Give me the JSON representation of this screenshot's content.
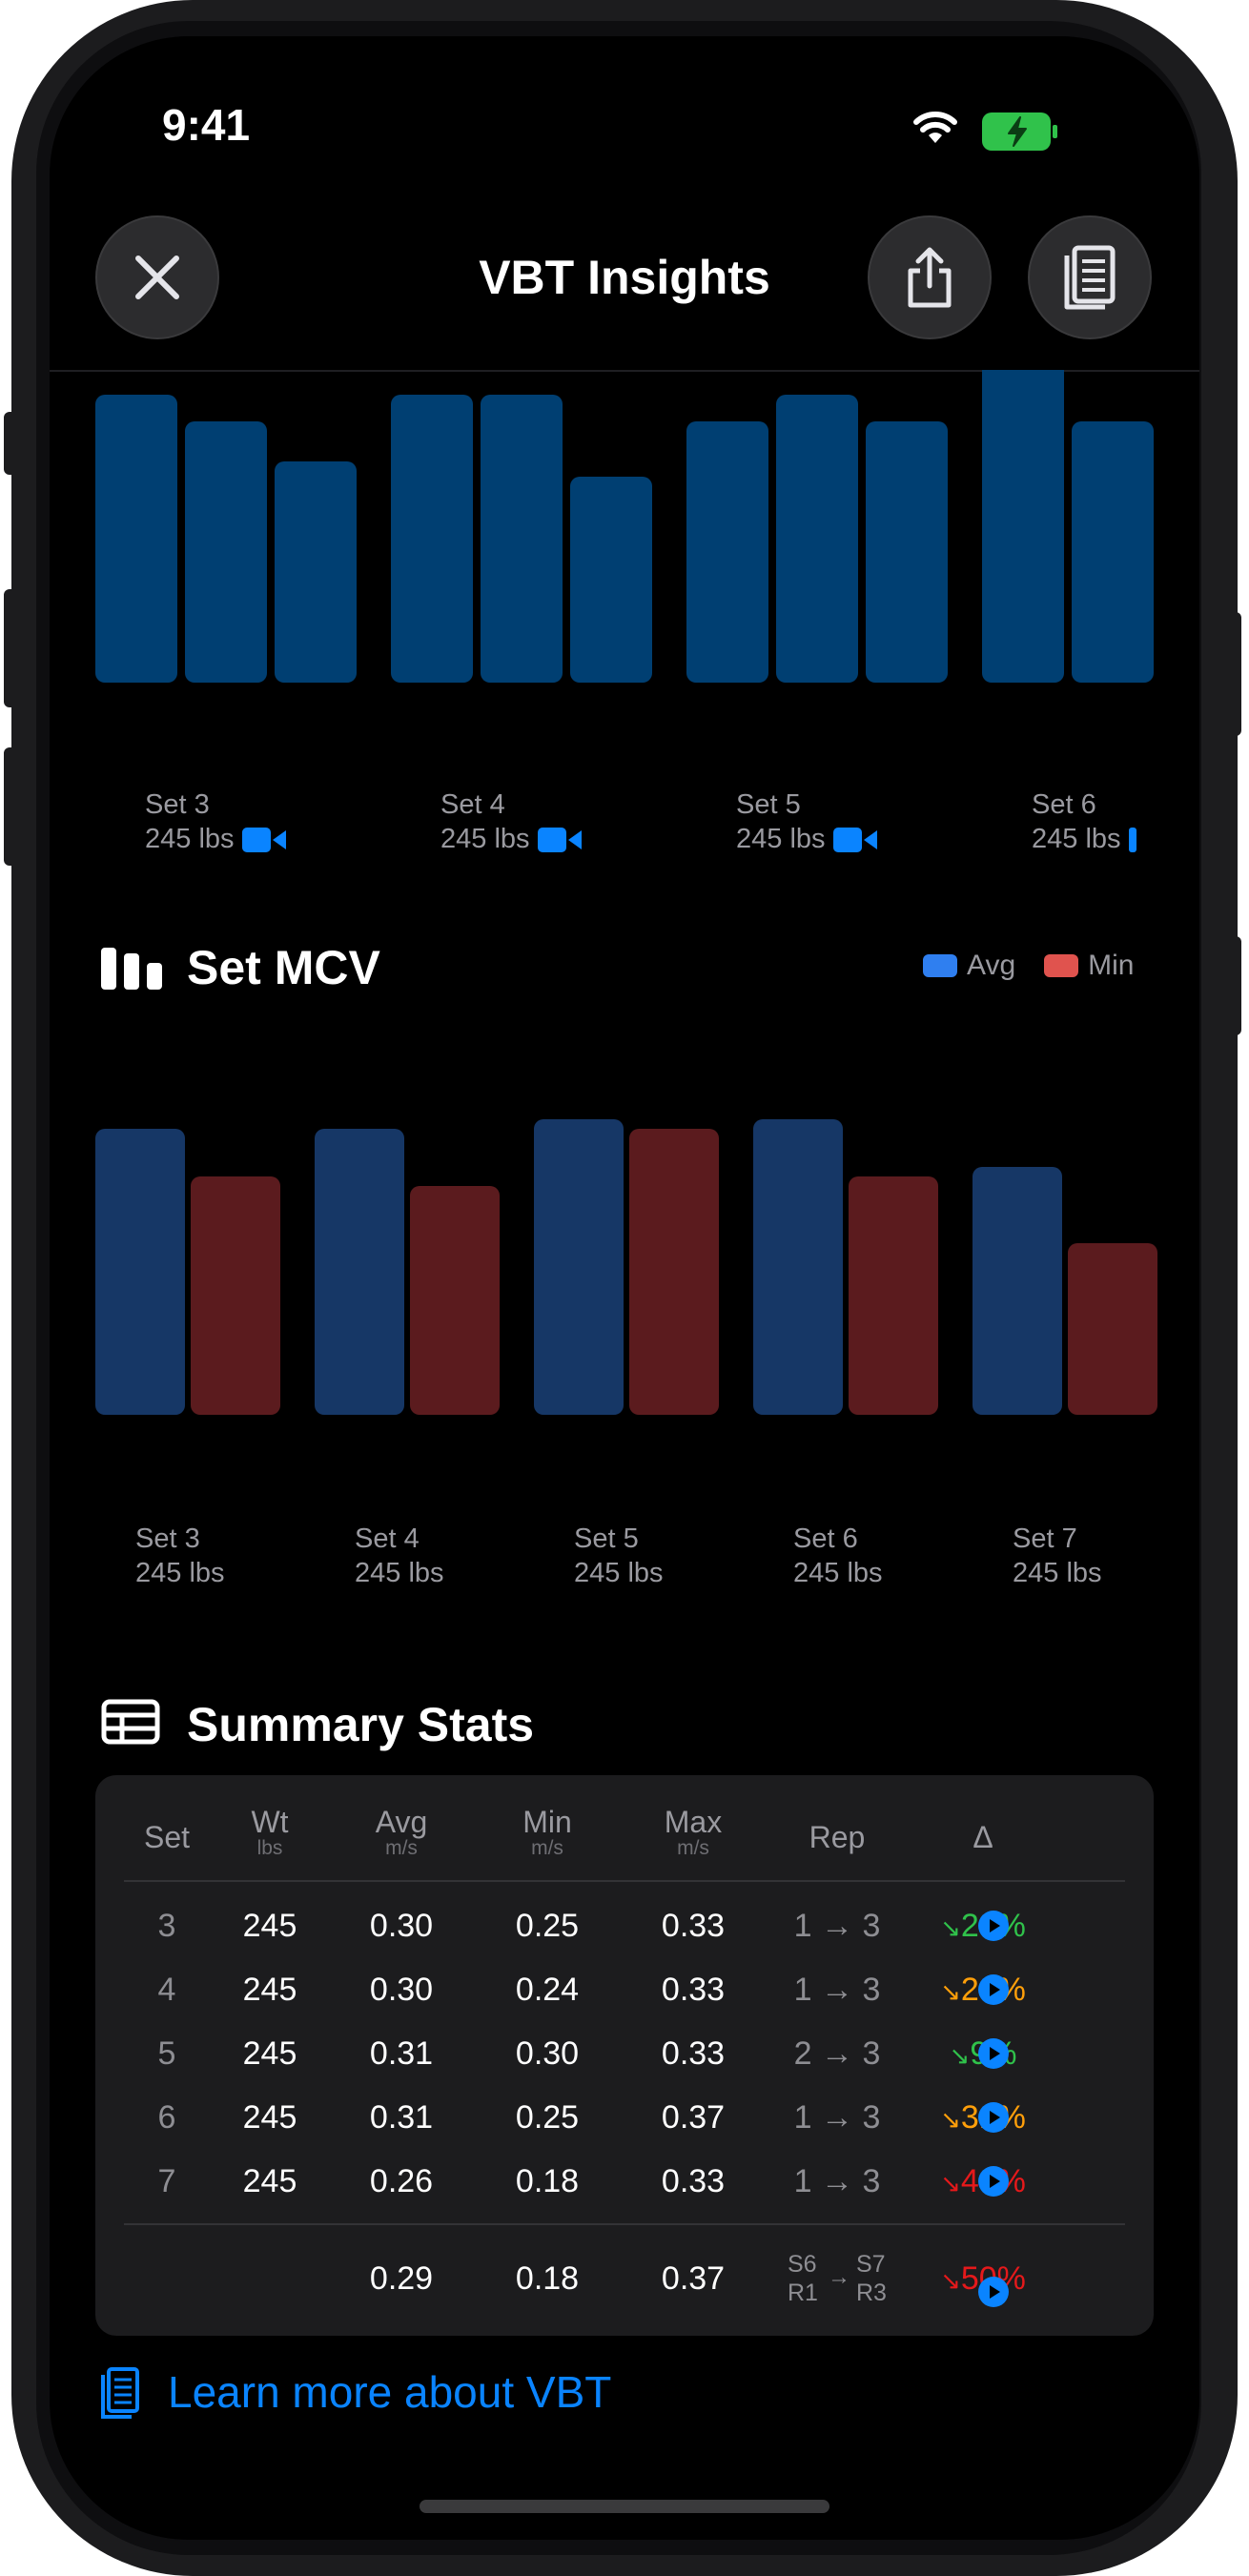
{
  "status_bar": {
    "time": "9:41"
  },
  "nav": {
    "title": "VBT Insights",
    "close_icon": "close-icon",
    "share_icon": "share-icon",
    "guide_icon": "document-icon"
  },
  "velocity_chart": {
    "set_labels": [
      {
        "set": "Set 3",
        "weight": "245 lbs"
      },
      {
        "set": "Set 4",
        "weight": "245 lbs"
      },
      {
        "set": "Set 5",
        "weight": "245 lbs"
      },
      {
        "set": "Set 6",
        "weight": "245 lbs"
      }
    ]
  },
  "mcv": {
    "title": "Set MCV",
    "legend": {
      "avg": "Avg",
      "min": "Min"
    },
    "colors": {
      "avg": "#163766",
      "min": "#5b1b1e",
      "avg_legend": "#2f7ff0",
      "min_legend": "#e0534e"
    }
  },
  "chart_data": {
    "type": "bar",
    "title": "Set MCV",
    "categories": [
      "Set 3\n245 lbs",
      "Set 4\n245 lbs",
      "Set 5\n245 lbs",
      "Set 6\n245 lbs",
      "Set 7\n245 lbs"
    ],
    "category_labels": [
      {
        "set": "Set 3",
        "weight": "245 lbs"
      },
      {
        "set": "Set 4",
        "weight": "245 lbs"
      },
      {
        "set": "Set 5",
        "weight": "245 lbs"
      },
      {
        "set": "Set 6",
        "weight": "245 lbs"
      },
      {
        "set": "Set 7",
        "weight": "245 lbs"
      }
    ],
    "series": [
      {
        "name": "Avg",
        "values": [
          0.3,
          0.3,
          0.31,
          0.31,
          0.26
        ]
      },
      {
        "name": "Min",
        "values": [
          0.25,
          0.24,
          0.3,
          0.25,
          0.18
        ]
      }
    ],
    "ylim": [
      0,
      0.33
    ],
    "legend_position": "top-right",
    "grid": false
  },
  "summary": {
    "title": "Summary Stats",
    "headers": [
      {
        "label": "Set",
        "unit": ""
      },
      {
        "label": "Wt",
        "unit": "lbs"
      },
      {
        "label": "Avg",
        "unit": "m/s"
      },
      {
        "label": "Min",
        "unit": "m/s"
      },
      {
        "label": "Max",
        "unit": "m/s"
      },
      {
        "label": "Rep",
        "unit": ""
      },
      {
        "label": "Δ",
        "unit": ""
      }
    ],
    "rows": [
      {
        "set": "3",
        "wt": "245",
        "avg": "0.30",
        "min": "0.25",
        "max": "0.33",
        "rep": "1 → 3",
        "delta": "23%",
        "trend": "green"
      },
      {
        "set": "4",
        "wt": "245",
        "avg": "0.30",
        "min": "0.24",
        "max": "0.33",
        "rep": "1 → 3",
        "delta": "29%",
        "trend": "orange"
      },
      {
        "set": "5",
        "wt": "245",
        "avg": "0.31",
        "min": "0.30",
        "max": "0.33",
        "rep": "2 → 3",
        "delta": "9%",
        "trend": "green"
      },
      {
        "set": "6",
        "wt": "245",
        "avg": "0.31",
        "min": "0.25",
        "max": "0.37",
        "rep": "1 → 3",
        "delta": "31%",
        "trend": "orange"
      },
      {
        "set": "7",
        "wt": "245",
        "avg": "0.26",
        "min": "0.18",
        "max": "0.33",
        "rep": "1 → 3",
        "delta": "44%",
        "trend": "red"
      }
    ],
    "total": {
      "avg": "0.29",
      "min": "0.18",
      "max": "0.37",
      "from_set": "S6",
      "from_rep": "R1",
      "to_set": "S7",
      "to_rep": "R3",
      "delta": "50%",
      "trend": "red"
    }
  },
  "learn_more": "Learn more about VBT"
}
